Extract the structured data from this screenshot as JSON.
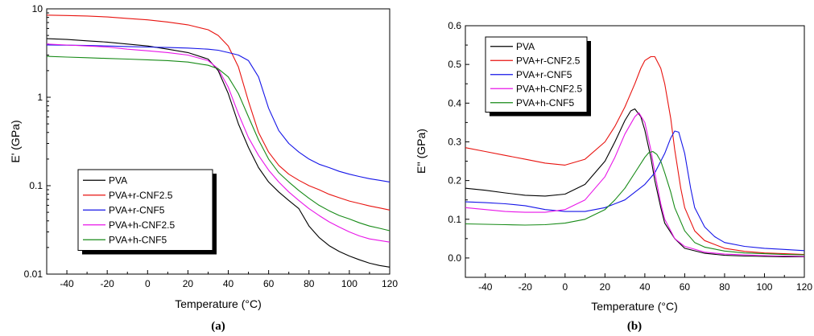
{
  "chart_data": [
    {
      "type": "line",
      "panel_label": "(a)",
      "xlabel": "Temperature (°C)",
      "ylabel": "E' (GPa)",
      "xlim": [
        -50,
        120
      ],
      "ylim": [
        0.01,
        10
      ],
      "yscale": "log",
      "x_ticks": [
        -40,
        -20,
        0,
        20,
        40,
        60,
        80,
        100,
        120
      ],
      "y_ticks": [
        {
          "value": 0.01,
          "label": "0.01"
        },
        {
          "value": 0.1,
          "label": "0.1"
        },
        {
          "value": 1,
          "label": "1"
        },
        {
          "value": 10,
          "label": "10"
        }
      ],
      "legend_position": "bottom-left",
      "series": [
        {
          "name": "PVA",
          "color": "#000000",
          "x": [
            -50,
            -40,
            -30,
            -20,
            -10,
            0,
            10,
            20,
            30,
            35,
            40,
            45,
            50,
            55,
            60,
            65,
            70,
            75,
            80,
            85,
            90,
            95,
            100,
            105,
            110,
            115,
            120
          ],
          "y": [
            4.6,
            4.5,
            4.35,
            4.2,
            4.0,
            3.8,
            3.5,
            3.2,
            2.7,
            2.0,
            1.1,
            0.5,
            0.27,
            0.16,
            0.11,
            0.085,
            0.068,
            0.055,
            0.035,
            0.026,
            0.021,
            0.018,
            0.016,
            0.0145,
            0.0133,
            0.0125,
            0.012
          ]
        },
        {
          "name": "PVA+r-CNF2.5",
          "color": "#e8130f",
          "x": [
            -50,
            -40,
            -30,
            -20,
            -10,
            0,
            10,
            20,
            30,
            35,
            40,
            45,
            50,
            55,
            60,
            65,
            70,
            75,
            80,
            85,
            90,
            95,
            100,
            105,
            110,
            115,
            120
          ],
          "y": [
            8.5,
            8.4,
            8.3,
            8.1,
            7.8,
            7.5,
            7.1,
            6.6,
            5.8,
            5.0,
            3.8,
            2.2,
            0.9,
            0.4,
            0.24,
            0.17,
            0.135,
            0.115,
            0.1,
            0.09,
            0.08,
            0.073,
            0.067,
            0.063,
            0.059,
            0.056,
            0.053
          ]
        },
        {
          "name": "PVA+r-CNF5",
          "color": "#1515e8",
          "x": [
            -50,
            -40,
            -30,
            -20,
            -10,
            0,
            10,
            20,
            30,
            35,
            40,
            45,
            50,
            55,
            60,
            65,
            70,
            75,
            80,
            85,
            90,
            95,
            100,
            105,
            110,
            115,
            120
          ],
          "y": [
            3.9,
            3.88,
            3.85,
            3.8,
            3.75,
            3.7,
            3.65,
            3.6,
            3.5,
            3.4,
            3.2,
            3.0,
            2.6,
            1.7,
            0.75,
            0.42,
            0.3,
            0.24,
            0.2,
            0.175,
            0.16,
            0.145,
            0.135,
            0.127,
            0.12,
            0.115,
            0.11
          ]
        },
        {
          "name": "PVA+h-CNF2.5",
          "color": "#e815e8",
          "x": [
            -50,
            -40,
            -30,
            -20,
            -10,
            0,
            10,
            20,
            30,
            35,
            40,
            45,
            50,
            55,
            60,
            65,
            70,
            75,
            80,
            85,
            90,
            95,
            100,
            105,
            110,
            115,
            120
          ],
          "y": [
            4.0,
            3.9,
            3.8,
            3.7,
            3.5,
            3.35,
            3.2,
            3.0,
            2.6,
            2.1,
            1.3,
            0.65,
            0.35,
            0.22,
            0.15,
            0.11,
            0.085,
            0.068,
            0.055,
            0.046,
            0.039,
            0.034,
            0.03,
            0.027,
            0.025,
            0.024,
            0.023
          ]
        },
        {
          "name": "PVA+h-CNF5",
          "color": "#168a16",
          "x": [
            -50,
            -40,
            -30,
            -20,
            -10,
            0,
            10,
            20,
            30,
            35,
            40,
            45,
            50,
            55,
            60,
            65,
            70,
            75,
            80,
            85,
            90,
            95,
            100,
            105,
            110,
            115,
            120
          ],
          "y": [
            2.9,
            2.85,
            2.8,
            2.75,
            2.7,
            2.65,
            2.6,
            2.5,
            2.3,
            2.1,
            1.7,
            1.1,
            0.6,
            0.33,
            0.2,
            0.14,
            0.11,
            0.088,
            0.072,
            0.06,
            0.052,
            0.046,
            0.042,
            0.038,
            0.035,
            0.033,
            0.031
          ]
        }
      ]
    },
    {
      "type": "line",
      "panel_label": "(b)",
      "xlabel": "Temperature (°C)",
      "ylabel": "E'' (GPa)",
      "xlim": [
        -50,
        120
      ],
      "ylim": [
        -0.05,
        0.6
      ],
      "x_ticks": [
        -40,
        -20,
        0,
        20,
        40,
        60,
        80,
        100,
        120
      ],
      "y_ticks": [
        {
          "value": 0.0,
          "label": "0.0"
        },
        {
          "value": 0.1,
          "label": "0.1"
        },
        {
          "value": 0.2,
          "label": "0.2"
        },
        {
          "value": 0.3,
          "label": "0.3"
        },
        {
          "value": 0.4,
          "label": "0.4"
        },
        {
          "value": 0.5,
          "label": "0.5"
        },
        {
          "value": 0.6,
          "label": "0.6"
        }
      ],
      "legend_position": "top-left",
      "series": [
        {
          "name": "PVA",
          "color": "#000000",
          "x": [
            -50,
            -40,
            -30,
            -20,
            -10,
            0,
            10,
            20,
            25,
            30,
            33,
            35,
            38,
            40,
            43,
            45,
            48,
            50,
            55,
            60,
            70,
            80,
            90,
            100,
            110,
            120
          ],
          "y": [
            0.18,
            0.175,
            0.168,
            0.162,
            0.16,
            0.165,
            0.19,
            0.25,
            0.3,
            0.355,
            0.38,
            0.385,
            0.365,
            0.33,
            0.26,
            0.2,
            0.13,
            0.09,
            0.05,
            0.025,
            0.012,
            0.007,
            0.005,
            0.004,
            0.003,
            0.003
          ]
        },
        {
          "name": "PVA+r-CNF2.5",
          "color": "#e8130f",
          "x": [
            -50,
            -40,
            -30,
            -20,
            -10,
            0,
            10,
            20,
            25,
            30,
            35,
            38,
            40,
            43,
            45,
            48,
            50,
            53,
            55,
            58,
            60,
            65,
            70,
            80,
            90,
            100,
            110,
            120
          ],
          "y": [
            0.285,
            0.275,
            0.265,
            0.255,
            0.245,
            0.24,
            0.255,
            0.3,
            0.34,
            0.39,
            0.45,
            0.49,
            0.51,
            0.52,
            0.52,
            0.49,
            0.45,
            0.36,
            0.28,
            0.18,
            0.13,
            0.07,
            0.045,
            0.025,
            0.017,
            0.013,
            0.011,
            0.009
          ]
        },
        {
          "name": "PVA+r-CNF5",
          "color": "#1515e8",
          "x": [
            -50,
            -40,
            -30,
            -20,
            -10,
            0,
            10,
            20,
            30,
            40,
            45,
            50,
            53,
            55,
            57,
            60,
            63,
            65,
            70,
            75,
            80,
            90,
            100,
            110,
            120
          ],
          "y": [
            0.145,
            0.143,
            0.14,
            0.135,
            0.125,
            0.12,
            0.12,
            0.13,
            0.15,
            0.19,
            0.22,
            0.27,
            0.31,
            0.328,
            0.325,
            0.27,
            0.18,
            0.13,
            0.08,
            0.055,
            0.04,
            0.03,
            0.025,
            0.022,
            0.019
          ]
        },
        {
          "name": "PVA+h-CNF2.5",
          "color": "#e815e8",
          "x": [
            -50,
            -40,
            -30,
            -20,
            -10,
            0,
            10,
            20,
            25,
            30,
            35,
            37,
            40,
            43,
            45,
            48,
            50,
            55,
            60,
            70,
            80,
            90,
            100,
            110,
            120
          ],
          "y": [
            0.13,
            0.125,
            0.12,
            0.118,
            0.118,
            0.125,
            0.15,
            0.21,
            0.26,
            0.32,
            0.365,
            0.375,
            0.35,
            0.28,
            0.22,
            0.14,
            0.1,
            0.05,
            0.03,
            0.015,
            0.01,
            0.008,
            0.006,
            0.005,
            0.004
          ]
        },
        {
          "name": "PVA+h-CNF5",
          "color": "#168a16",
          "x": [
            -50,
            -40,
            -30,
            -20,
            -10,
            0,
            10,
            20,
            25,
            30,
            35,
            40,
            42,
            44,
            46,
            48,
            50,
            53,
            55,
            60,
            65,
            70,
            80,
            90,
            100,
            110,
            120
          ],
          "y": [
            0.088,
            0.087,
            0.086,
            0.085,
            0.086,
            0.09,
            0.1,
            0.125,
            0.15,
            0.18,
            0.22,
            0.26,
            0.272,
            0.275,
            0.268,
            0.25,
            0.22,
            0.17,
            0.13,
            0.07,
            0.04,
            0.028,
            0.018,
            0.013,
            0.011,
            0.009,
            0.008
          ]
        }
      ]
    }
  ]
}
